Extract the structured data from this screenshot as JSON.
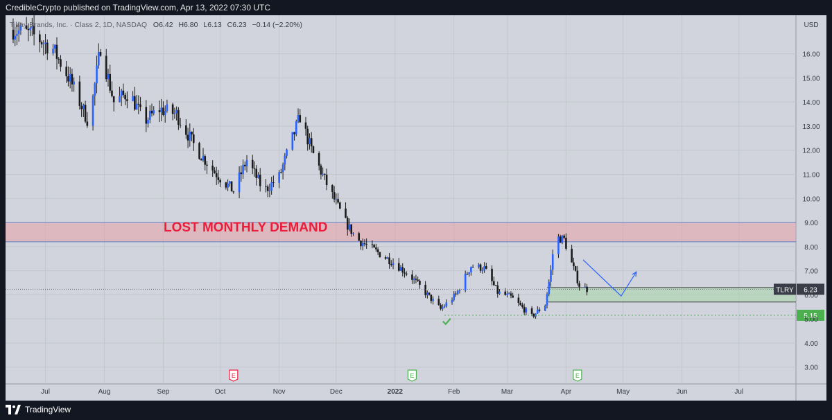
{
  "header": {
    "published": "CredibleCrypto published on TradingView.com, Apr 13, 2022 07:30 UTC"
  },
  "footer": {
    "brand": "TradingView"
  },
  "colors": {
    "chart_bg": "#d1d4dc",
    "grid": "#c3c6ce",
    "bull": "#2962ff",
    "bear": "#1b1b1b",
    "zone_red": "#e8a0a8",
    "zone_green": "#a5d6a7",
    "label_red": "#e91e3c",
    "support_green": "#4caf50",
    "projection_blue": "#2962ff"
  },
  "chart_data": {
    "type": "candlestick",
    "legend": {
      "name": "Tilray Brands, Inc. · Class 2, 1D, NASDAQ",
      "open_label": "O",
      "open": "6.42",
      "high_label": "H",
      "high": "6.80",
      "low_label": "L",
      "low": "6.13",
      "close_label": "C",
      "close": "6.23",
      "change": "−0.14 (−2.20%)"
    },
    "currency": "USD",
    "y_ticks": [
      "16.00",
      "15.00",
      "14.00",
      "13.00",
      "12.00",
      "11.00",
      "10.00",
      "9.00",
      "8.00",
      "7.00",
      "6.00",
      "5.00",
      "4.00",
      "3.00"
    ],
    "ylim": [
      2.3,
      17.6
    ],
    "x_ticks": [
      {
        "label": "Jul",
        "date": "2021-07-01",
        "bold": false
      },
      {
        "label": "Aug",
        "date": "2021-08-01",
        "bold": false
      },
      {
        "label": "Sep",
        "date": "2021-09-01",
        "bold": false
      },
      {
        "label": "Oct",
        "date": "2021-10-01",
        "bold": false
      },
      {
        "label": "Nov",
        "date": "2021-11-01",
        "bold": false
      },
      {
        "label": "Dec",
        "date": "2021-12-01",
        "bold": false
      },
      {
        "label": "2022",
        "date": "2022-01-01",
        "bold": true
      },
      {
        "label": "Feb",
        "date": "2022-02-01",
        "bold": false
      },
      {
        "label": "Mar",
        "date": "2022-03-01",
        "bold": false
      },
      {
        "label": "Apr",
        "date": "2022-04-01",
        "bold": false
      },
      {
        "label": "May",
        "date": "2022-05-01",
        "bold": false
      },
      {
        "label": "Jun",
        "date": "2022-06-01",
        "bold": false
      },
      {
        "label": "Jul",
        "date": "2022-07-01",
        "bold": false
      }
    ],
    "price_path": [
      {
        "date": "2021-06-14",
        "close": 17.0
      },
      {
        "date": "2021-06-24",
        "close": 16.8
      },
      {
        "date": "2021-07-05",
        "close": 16.2
      },
      {
        "date": "2021-07-14",
        "close": 14.9
      },
      {
        "date": "2021-07-24",
        "close": 13.1
      },
      {
        "date": "2021-07-30",
        "close": 16.3
      },
      {
        "date": "2021-08-06",
        "close": 14.0
      },
      {
        "date": "2021-08-14",
        "close": 14.4
      },
      {
        "date": "2021-08-22",
        "close": 13.2
      },
      {
        "date": "2021-08-30",
        "close": 13.7
      },
      {
        "date": "2021-09-08",
        "close": 13.5
      },
      {
        "date": "2021-09-18",
        "close": 12.1
      },
      {
        "date": "2021-09-28",
        "close": 11.1
      },
      {
        "date": "2021-10-08",
        "close": 10.3
      },
      {
        "date": "2021-10-15",
        "close": 11.6
      },
      {
        "date": "2021-10-24",
        "close": 10.3
      },
      {
        "date": "2021-11-01",
        "close": 10.9
      },
      {
        "date": "2021-11-08",
        "close": 12.5
      },
      {
        "date": "2021-11-12",
        "close": 13.4
      },
      {
        "date": "2021-11-18",
        "close": 12.0
      },
      {
        "date": "2021-11-26",
        "close": 10.6
      },
      {
        "date": "2021-12-06",
        "close": 9.0
      },
      {
        "date": "2021-12-12",
        "close": 8.3
      },
      {
        "date": "2021-12-22",
        "close": 7.8
      },
      {
        "date": "2022-01-01",
        "close": 7.3
      },
      {
        "date": "2022-01-10",
        "close": 6.7
      },
      {
        "date": "2022-01-18",
        "close": 6.0
      },
      {
        "date": "2022-01-25",
        "close": 5.4
      },
      {
        "date": "2022-02-02",
        "close": 6.0
      },
      {
        "date": "2022-02-10",
        "close": 7.2
      },
      {
        "date": "2022-02-17",
        "close": 7.1
      },
      {
        "date": "2022-02-24",
        "close": 6.1
      },
      {
        "date": "2022-03-03",
        "close": 5.9
      },
      {
        "date": "2022-03-14",
        "close": 5.1
      },
      {
        "date": "2022-03-21",
        "close": 5.6
      },
      {
        "date": "2022-03-24",
        "close": 7.0
      },
      {
        "date": "2022-03-26",
        "close": 8.4
      },
      {
        "date": "2022-03-31",
        "close": 8.3
      },
      {
        "date": "2022-04-04",
        "close": 7.3
      },
      {
        "date": "2022-04-08",
        "close": 6.4
      },
      {
        "date": "2022-04-12",
        "close": 6.23
      }
    ],
    "zones": [
      {
        "name": "lost-monthly-demand-zone",
        "from": 8.2,
        "to": 9.0,
        "start": "2021-06-10",
        "end": "extend-right"
      },
      {
        "name": "support-zone",
        "from": 5.7,
        "to": 6.3,
        "start": "2022-03-22",
        "end": "extend-right"
      }
    ],
    "lines": [
      {
        "name": "last-price-line",
        "value": 6.23,
        "style": "dotted"
      },
      {
        "name": "support-line",
        "value": 5.15,
        "style": "dotted",
        "start": "2022-01-27"
      }
    ],
    "annotations": {
      "zone_label": "LOST MONTHLY DEMAND",
      "projection": [
        {
          "date": "2022-04-10",
          "price": 7.45
        },
        {
          "date": "2022-04-30",
          "price": 5.95
        },
        {
          "date": "2022-05-08",
          "price": 6.95
        }
      ],
      "checkmark": {
        "date": "2022-01-28",
        "price": 4.9
      },
      "earnings_events": [
        {
          "date": "2021-10-08",
          "label": "E",
          "color": "#e91e3c"
        },
        {
          "date": "2022-01-10",
          "label": "E",
          "color": "#4caf50"
        },
        {
          "date": "2022-04-07",
          "label": "E",
          "color": "#4caf50"
        }
      ]
    },
    "price_labels": [
      {
        "name": "ticker",
        "text": "TLRY",
        "value": "6.23"
      },
      {
        "name": "support",
        "text": "",
        "value": "5.15"
      }
    ]
  }
}
